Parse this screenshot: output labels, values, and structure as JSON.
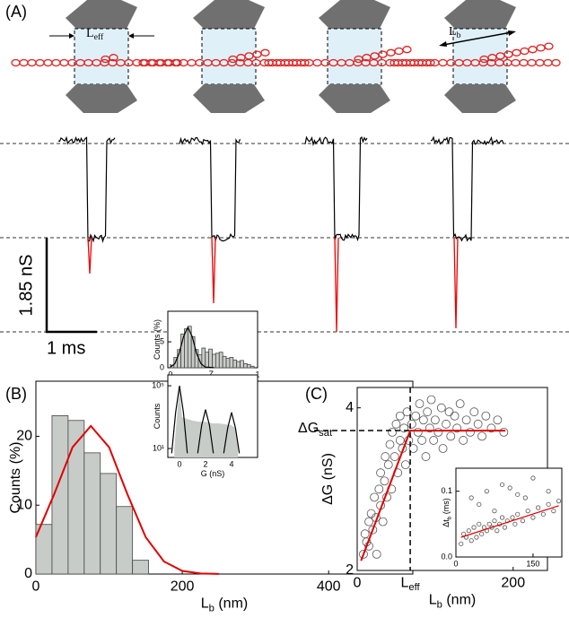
{
  "panel_a": {
    "label": "(A)",
    "l_eff": {
      "main": "L",
      "sub": "eff"
    },
    "l_b": {
      "main": "L",
      "sub": "b"
    },
    "scale_y": "1.85 nS",
    "scale_x": "1 ms"
  },
  "chart_data": [
    {
      "type": "histogram",
      "panel_label": "(B)",
      "x_label": {
        "main": "L",
        "sub": "b",
        "rest": " (nm)"
      },
      "y_label": {
        "main": "Counts (%)"
      },
      "bins": [
        0,
        22,
        44,
        66,
        88,
        110,
        132,
        154
      ],
      "values": [
        7.2,
        23,
        22.3,
        17.6,
        14.6,
        9.8,
        2
      ],
      "color": "#c8ccc8",
      "fit": {
        "x": [
          0,
          25,
          50,
          75,
          100,
          125,
          150,
          175,
          200,
          225,
          250
        ],
        "values": [
          5.36,
          11.6,
          18.4,
          21.5,
          18.4,
          11.6,
          5.36,
          1.82,
          0.45,
          0.08,
          0.01
        ],
        "color": "#e00000"
      },
      "xlim": [
        0,
        515
      ],
      "ylim": [
        0,
        28
      ],
      "xticks": [
        0,
        200,
        400
      ],
      "yticks": [
        0,
        10,
        20
      ]
    },
    {
      "type": "histogram",
      "x_label": {
        "main": "Z",
        "sub": "b"
      },
      "y_label": {
        "main": "Counts (%)"
      },
      "bins": [
        0,
        0.04,
        0.08,
        0.12,
        0.16,
        0.2,
        0.24,
        0.28,
        0.32,
        0.36,
        0.4,
        0.44,
        0.48,
        0.52,
        0.56,
        0.6,
        0.64,
        0.68,
        0.72,
        0.76,
        0.8,
        0.84,
        0.88,
        0.92,
        0.96
      ],
      "values": [
        0.5,
        2,
        3.5,
        6.5,
        7.5,
        8,
        6,
        3.5,
        2.5,
        3.8,
        3,
        3.6,
        2.6,
        2.8,
        3,
        2.2,
        1.8,
        2,
        1.5,
        1.2,
        1.4,
        0.8,
        0.6,
        0.3
      ],
      "color": "#c8ccc8",
      "fit": {
        "x": [
          0,
          0.05,
          0.1,
          0.15,
          0.2,
          0.25,
          0.3,
          0.35,
          0.4,
          0.5
        ],
        "values": [
          0.13,
          0.78,
          2.8,
          6,
          7.8,
          6,
          2.8,
          0.78,
          0.13,
          0.01
        ],
        "color": "#000000"
      },
      "xlim": [
        -0.03,
        1.0
      ],
      "ylim": [
        0,
        10.9
      ],
      "xticks": [
        0,
        1
      ],
      "yticks": [
        0,
        5
      ]
    },
    {
      "type": "area",
      "x_label": {
        "main": "G (nS)"
      },
      "y_label": {
        "main": "Counts"
      },
      "log_y": true,
      "color": "#c8ccc8",
      "x": [
        -0.4,
        -0.2,
        0,
        0.2,
        0.5,
        1,
        1.5,
        2,
        2.5,
        3,
        3.5,
        4,
        4.3,
        4.5
      ],
      "values": [
        10,
        1000,
        80000,
        1000,
        800,
        600,
        500,
        500,
        400,
        400,
        350,
        300,
        200,
        10
      ],
      "fits": [
        {
          "x": [
            -0.6,
            -0.3,
            0,
            0.3,
            0.6
          ],
          "values": [
            5,
            2000,
            100000,
            2000,
            5
          ]
        },
        {
          "x": [
            1.4,
            1.7,
            2,
            2.3,
            2.6
          ],
          "values": [
            5,
            300,
            3000,
            300,
            5
          ]
        },
        {
          "x": [
            3.4,
            3.7,
            4,
            4.3,
            4.6
          ],
          "values": [
            5,
            200,
            2000,
            200,
            5
          ]
        }
      ],
      "fit_color": "#000000",
      "xlim": [
        -0.9,
        6
      ],
      "ylim": [
        2.7,
        490000
      ],
      "xticks": [
        0,
        2,
        4
      ],
      "yticks": [
        {
          "value": 10,
          "label": "10¹"
        },
        {
          "value": 100000,
          "label": "10⁵"
        }
      ]
    },
    {
      "type": "scatter",
      "panel_label": "(C)",
      "x_label": {
        "main": "L",
        "sub": "b",
        "rest": " (nm)"
      },
      "y_label": {
        "main": "ΔG (nS)"
      },
      "color": "#555555",
      "x": [
        8,
        10,
        12,
        15,
        15,
        18,
        20,
        22,
        24,
        25,
        28,
        30,
        30,
        33,
        35,
        36,
        38,
        40,
        42,
        44,
        45,
        48,
        50,
        52,
        55,
        55,
        58,
        60,
        62,
        64,
        66,
        70,
        72,
        75,
        78,
        80,
        83,
        85,
        88,
        90,
        93,
        95,
        98,
        100,
        104,
        108,
        110,
        114,
        118,
        120,
        125,
        128,
        132,
        136,
        140,
        145,
        150,
        155,
        160,
        165,
        172,
        180,
        188
      ],
      "values": [
        2.2,
        2.45,
        2.35,
        2.6,
        2.3,
        2.7,
        2.5,
        2.9,
        2.65,
        2.2,
        3.0,
        2.8,
        3.2,
        2.6,
        3.1,
        3.4,
        2.9,
        3.3,
        3.55,
        3.0,
        3.7,
        3.4,
        3.8,
        3.2,
        3.6,
        3.9,
        3.5,
        3.75,
        3.3,
        3.95,
        3.6,
        3.8,
        3.5,
        3.9,
        3.7,
        4.05,
        3.6,
        3.85,
        3.4,
        3.95,
        3.75,
        4.1,
        3.6,
        3.85,
        3.7,
        4.0,
        3.5,
        3.8,
        3.95,
        3.65,
        3.9,
        3.75,
        4.05,
        3.6,
        3.85,
        3.7,
        3.95,
        3.8,
        3.65,
        3.9,
        3.75,
        3.85,
        3.7
      ],
      "fit": {
        "x": [
          5,
          68,
          190
        ],
        "values": [
          2.12,
          3.72,
          3.72
        ],
        "color": "#e00000"
      },
      "l_eff": 68,
      "l_eff_label": {
        "main": "L",
        "sub": "eff"
      },
      "dg_sat": 3.72,
      "dg_sat_label": {
        "main": "ΔG",
        "sub": "sat"
      },
      "xlim": [
        0,
        244
      ],
      "ylim": [
        2,
        4.25
      ],
      "xticks": [
        0,
        200
      ],
      "yticks": [
        2,
        4
      ]
    },
    {
      "type": "scatter",
      "y_label": {
        "main": "Δt",
        "sub": "b",
        "rest": " (ms)"
      },
      "color": "#555555",
      "x": [
        10,
        15,
        20,
        25,
        30,
        35,
        40,
        45,
        50,
        55,
        60,
        65,
        70,
        75,
        80,
        85,
        90,
        95,
        100,
        110,
        115,
        120,
        130,
        140,
        150,
        160,
        170,
        180,
        190,
        200,
        30,
        60,
        90,
        120,
        150,
        180,
        45,
        75,
        105,
        135
      ],
      "values": [
        0.02,
        0.035,
        0.03,
        0.04,
        0.025,
        0.045,
        0.03,
        0.05,
        0.035,
        0.045,
        0.04,
        0.05,
        0.045,
        0.055,
        0.04,
        0.05,
        0.06,
        0.045,
        0.055,
        0.06,
        0.05,
        0.065,
        0.055,
        0.07,
        0.06,
        0.075,
        0.065,
        0.08,
        0.07,
        0.085,
        0.09,
        0.1,
        0.11,
        0.095,
        0.12,
        0.1,
        0.08,
        0.07,
        0.105,
        0.09
      ],
      "fit": {
        "x": [
          10,
          200
        ],
        "values": [
          0.03,
          0.078
        ],
        "color": "#e00000"
      },
      "xlim": [
        0,
        206
      ],
      "ylim": [
        0,
        0.135
      ],
      "xticks": [
        0,
        150
      ],
      "yticks": [
        {
          "value": 0,
          "label": "0.0"
        },
        {
          "value": 0.1,
          "label": "0.1"
        }
      ]
    }
  ]
}
